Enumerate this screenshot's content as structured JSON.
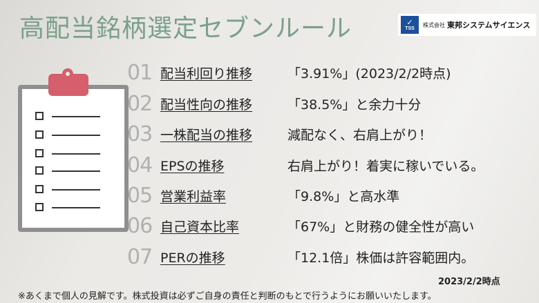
{
  "title": "高配当銘柄選定セブンルール",
  "logo": {
    "mark_text": "TSS",
    "small_text": "株式会社",
    "company_name": "東邦システムサイエンス"
  },
  "rules": [
    {
      "num": "01",
      "label": "配当利回り推移",
      "desc": "「3.91%」(2023/2/2時点)"
    },
    {
      "num": "02",
      "label": "配当性向の推移",
      "desc": "「38.5%」と余力十分"
    },
    {
      "num": "03",
      "label": "一株配当の推移",
      "desc": "減配なく、右肩上がり！"
    },
    {
      "num": "04",
      "label": "EPSの推移",
      "desc": "右肩上がり！着実に稼いでいる。"
    },
    {
      "num": "05",
      "label": "営業利益率",
      "desc": "「9.8%」と高水準"
    },
    {
      "num": "06",
      "label": "自己資本比率",
      "desc": "「67%」と財務の健全性が高い"
    },
    {
      "num": "07",
      "label": "PERの推移",
      "desc": "「12.1倍」株価は許容範囲内。"
    }
  ],
  "date_note": "2023/2/2時点",
  "disclaimer": "※あくまで個人の見解です。株式投資は必ずご自身の責任と判断のもとで行うようにお願いいたします。",
  "colors": {
    "title": "#7aa08a",
    "clip": "#d55f6c",
    "logo": "#1d4f9c"
  },
  "icons": [
    "clipboard-icon",
    "checkbox-icon"
  ]
}
